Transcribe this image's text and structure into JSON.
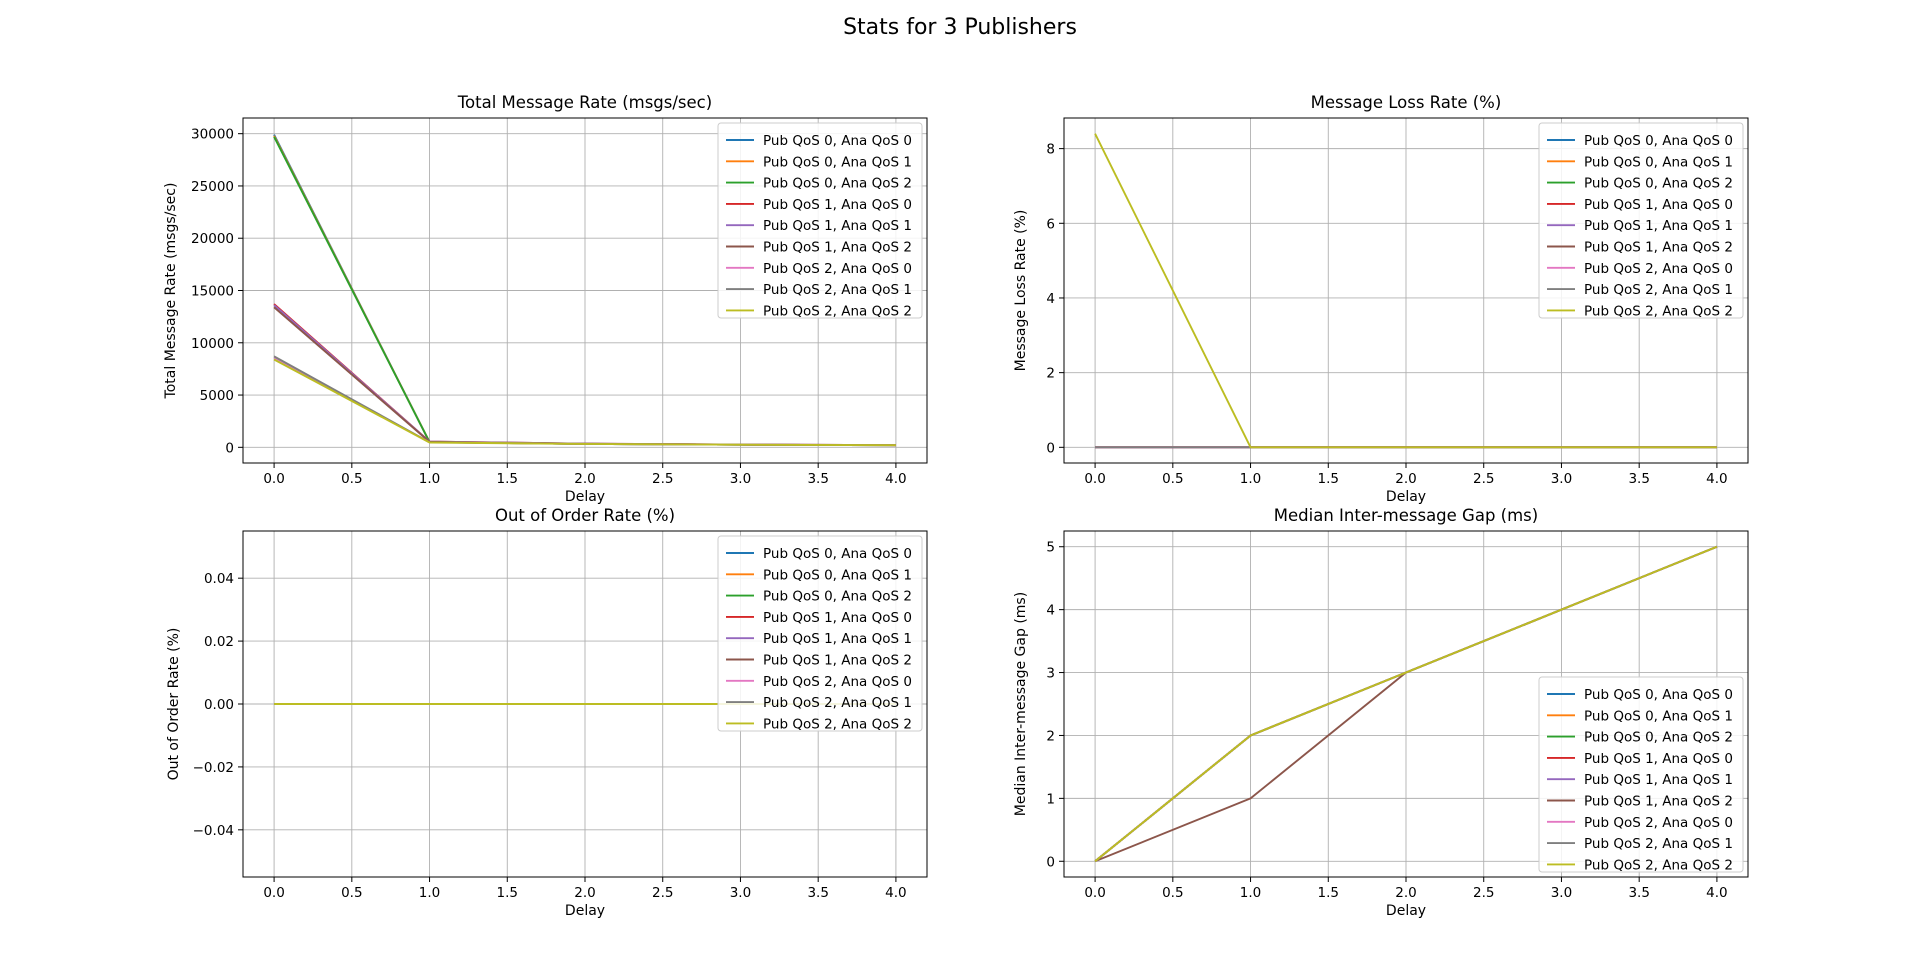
{
  "figure": {
    "suptitle": "Stats for 3 Publishers"
  },
  "colors": [
    "#1f77b4",
    "#ff7f0e",
    "#2ca02c",
    "#d62728",
    "#9467bd",
    "#8c564b",
    "#e377c2",
    "#7f7f7f",
    "#bcbd22"
  ],
  "chart_data": [
    {
      "type": "line",
      "title": "Total Message Rate (msgs/sec)",
      "xlabel": "Delay",
      "ylabel": "Total Message Rate (msgs/sec)",
      "xlim": [
        -0.2,
        4.2
      ],
      "ylim": [
        -1500,
        31500
      ],
      "xticks": [
        0.0,
        0.5,
        1.0,
        1.5,
        2.0,
        2.5,
        3.0,
        3.5,
        4.0
      ],
      "xtick_labels": [
        "0.0",
        "0.5",
        "1.0",
        "1.5",
        "2.0",
        "2.5",
        "3.0",
        "3.5",
        "4.0"
      ],
      "yticks": [
        0,
        5000,
        10000,
        15000,
        20000,
        25000,
        30000
      ],
      "ytick_labels": [
        "0",
        "5000",
        "10000",
        "15000",
        "20000",
        "25000",
        "30000"
      ],
      "grid": true,
      "legend": "upper-right",
      "x": [
        0,
        1,
        2,
        3,
        4
      ],
      "series": [
        {
          "name": "Pub QoS 0, Ana QoS 0",
          "values": [
            29900,
            500,
            330,
            250,
            200
          ]
        },
        {
          "name": "Pub QoS 0, Ana QoS 1",
          "values": [
            29800,
            500,
            330,
            250,
            200
          ]
        },
        {
          "name": "Pub QoS 0, Ana QoS 2",
          "values": [
            29700,
            490,
            330,
            250,
            200
          ]
        },
        {
          "name": "Pub QoS 1, Ana QoS 0",
          "values": [
            13700,
            550,
            350,
            260,
            210
          ]
        },
        {
          "name": "Pub QoS 1, Ana QoS 1",
          "values": [
            13600,
            550,
            350,
            260,
            210
          ]
        },
        {
          "name": "Pub QoS 1, Ana QoS 2",
          "values": [
            13400,
            520,
            340,
            260,
            210
          ]
        },
        {
          "name": "Pub QoS 2, Ana QoS 0",
          "values": [
            8600,
            480,
            330,
            250,
            200
          ]
        },
        {
          "name": "Pub QoS 2, Ana QoS 1",
          "values": [
            8700,
            480,
            330,
            250,
            200
          ]
        },
        {
          "name": "Pub QoS 2, Ana QoS 2",
          "values": [
            8400,
            460,
            320,
            250,
            200
          ]
        }
      ]
    },
    {
      "type": "line",
      "title": "Message Loss Rate (%)",
      "xlabel": "Delay",
      "ylabel": "Message Loss Rate (%)",
      "xlim": [
        -0.2,
        4.2
      ],
      "ylim": [
        -0.42,
        8.82
      ],
      "xticks": [
        0.0,
        0.5,
        1.0,
        1.5,
        2.0,
        2.5,
        3.0,
        3.5,
        4.0
      ],
      "xtick_labels": [
        "0.0",
        "0.5",
        "1.0",
        "1.5",
        "2.0",
        "2.5",
        "3.0",
        "3.5",
        "4.0"
      ],
      "yticks": [
        0,
        2,
        4,
        6,
        8
      ],
      "ytick_labels": [
        "0",
        "2",
        "4",
        "6",
        "8"
      ],
      "grid": true,
      "legend": "upper-right",
      "x": [
        0,
        1,
        2,
        3,
        4
      ],
      "series": [
        {
          "name": "Pub QoS 0, Ana QoS 0",
          "values": [
            0,
            0,
            0,
            0,
            0
          ]
        },
        {
          "name": "Pub QoS 0, Ana QoS 1",
          "values": [
            0,
            0,
            0,
            0,
            0
          ]
        },
        {
          "name": "Pub QoS 0, Ana QoS 2",
          "values": [
            0,
            0,
            0,
            0,
            0
          ]
        },
        {
          "name": "Pub QoS 1, Ana QoS 0",
          "values": [
            0,
            0,
            0,
            0,
            0
          ]
        },
        {
          "name": "Pub QoS 1, Ana QoS 1",
          "values": [
            0,
            0,
            0,
            0,
            0
          ]
        },
        {
          "name": "Pub QoS 1, Ana QoS 2",
          "values": [
            0,
            0,
            0,
            0,
            0
          ]
        },
        {
          "name": "Pub QoS 2, Ana QoS 0",
          "values": [
            0,
            0,
            0,
            0,
            0
          ]
        },
        {
          "name": "Pub QoS 2, Ana QoS 1",
          "values": [
            0,
            0,
            0,
            0,
            0
          ]
        },
        {
          "name": "Pub QoS 2, Ana QoS 2",
          "values": [
            8.4,
            0,
            0,
            0,
            0
          ]
        }
      ]
    },
    {
      "type": "line",
      "title": "Out of Order Rate (%)",
      "xlabel": "Delay",
      "ylabel": "Out of Order Rate (%)",
      "xlim": [
        -0.2,
        4.2
      ],
      "ylim": [
        -0.055,
        0.055
      ],
      "xticks": [
        0.0,
        0.5,
        1.0,
        1.5,
        2.0,
        2.5,
        3.0,
        3.5,
        4.0
      ],
      "xtick_labels": [
        "0.0",
        "0.5",
        "1.0",
        "1.5",
        "2.0",
        "2.5",
        "3.0",
        "3.5",
        "4.0"
      ],
      "yticks": [
        -0.04,
        -0.02,
        0.0,
        0.02,
        0.04
      ],
      "ytick_labels": [
        "−0.04",
        "−0.02",
        "0.00",
        "0.02",
        "0.04"
      ],
      "grid": true,
      "legend": "upper-right",
      "x": [
        0,
        1,
        2,
        3,
        4
      ],
      "series": [
        {
          "name": "Pub QoS 0, Ana QoS 0",
          "values": [
            0,
            0,
            0,
            0,
            0
          ]
        },
        {
          "name": "Pub QoS 0, Ana QoS 1",
          "values": [
            0,
            0,
            0,
            0,
            0
          ]
        },
        {
          "name": "Pub QoS 0, Ana QoS 2",
          "values": [
            0,
            0,
            0,
            0,
            0
          ]
        },
        {
          "name": "Pub QoS 1, Ana QoS 0",
          "values": [
            0,
            0,
            0,
            0,
            0
          ]
        },
        {
          "name": "Pub QoS 1, Ana QoS 1",
          "values": [
            0,
            0,
            0,
            0,
            0
          ]
        },
        {
          "name": "Pub QoS 1, Ana QoS 2",
          "values": [
            0,
            0,
            0,
            0,
            0
          ]
        },
        {
          "name": "Pub QoS 2, Ana QoS 0",
          "values": [
            0,
            0,
            0,
            0,
            0
          ]
        },
        {
          "name": "Pub QoS 2, Ana QoS 1",
          "values": [
            0,
            0,
            0,
            0,
            0
          ]
        },
        {
          "name": "Pub QoS 2, Ana QoS 2",
          "values": [
            0,
            0,
            0,
            0,
            0
          ]
        }
      ]
    },
    {
      "type": "line",
      "title": "Median Inter-message Gap (ms)",
      "xlabel": "Delay",
      "ylabel": "Median Inter-message Gap (ms)",
      "xlim": [
        -0.2,
        4.2
      ],
      "ylim": [
        -0.25,
        5.25
      ],
      "xticks": [
        0.0,
        0.5,
        1.0,
        1.5,
        2.0,
        2.5,
        3.0,
        3.5,
        4.0
      ],
      "xtick_labels": [
        "0.0",
        "0.5",
        "1.0",
        "1.5",
        "2.0",
        "2.5",
        "3.0",
        "3.5",
        "4.0"
      ],
      "yticks": [
        0,
        1,
        2,
        3,
        4,
        5
      ],
      "ytick_labels": [
        "0",
        "1",
        "2",
        "3",
        "4",
        "5"
      ],
      "grid": true,
      "legend": "lower-right",
      "x": [
        0,
        1,
        2,
        3,
        4
      ],
      "series": [
        {
          "name": "Pub QoS 0, Ana QoS 0",
          "values": [
            0,
            2,
            3,
            4,
            5
          ]
        },
        {
          "name": "Pub QoS 0, Ana QoS 1",
          "values": [
            0,
            2,
            3,
            4,
            5
          ]
        },
        {
          "name": "Pub QoS 0, Ana QoS 2",
          "values": [
            0,
            2,
            3,
            4,
            5
          ]
        },
        {
          "name": "Pub QoS 1, Ana QoS 0",
          "values": [
            0,
            2,
            3,
            4,
            5
          ]
        },
        {
          "name": "Pub QoS 1, Ana QoS 1",
          "values": [
            0,
            2,
            3,
            4,
            5
          ]
        },
        {
          "name": "Pub QoS 1, Ana QoS 2",
          "values": [
            0,
            1,
            3,
            4,
            5
          ]
        },
        {
          "name": "Pub QoS 2, Ana QoS 0",
          "values": [
            0,
            2,
            3,
            4,
            5
          ]
        },
        {
          "name": "Pub QoS 2, Ana QoS 1",
          "values": [
            0,
            2,
            3,
            4,
            5
          ]
        },
        {
          "name": "Pub QoS 2, Ana QoS 2",
          "values": [
            0,
            2,
            3,
            4,
            5
          ]
        }
      ]
    }
  ]
}
